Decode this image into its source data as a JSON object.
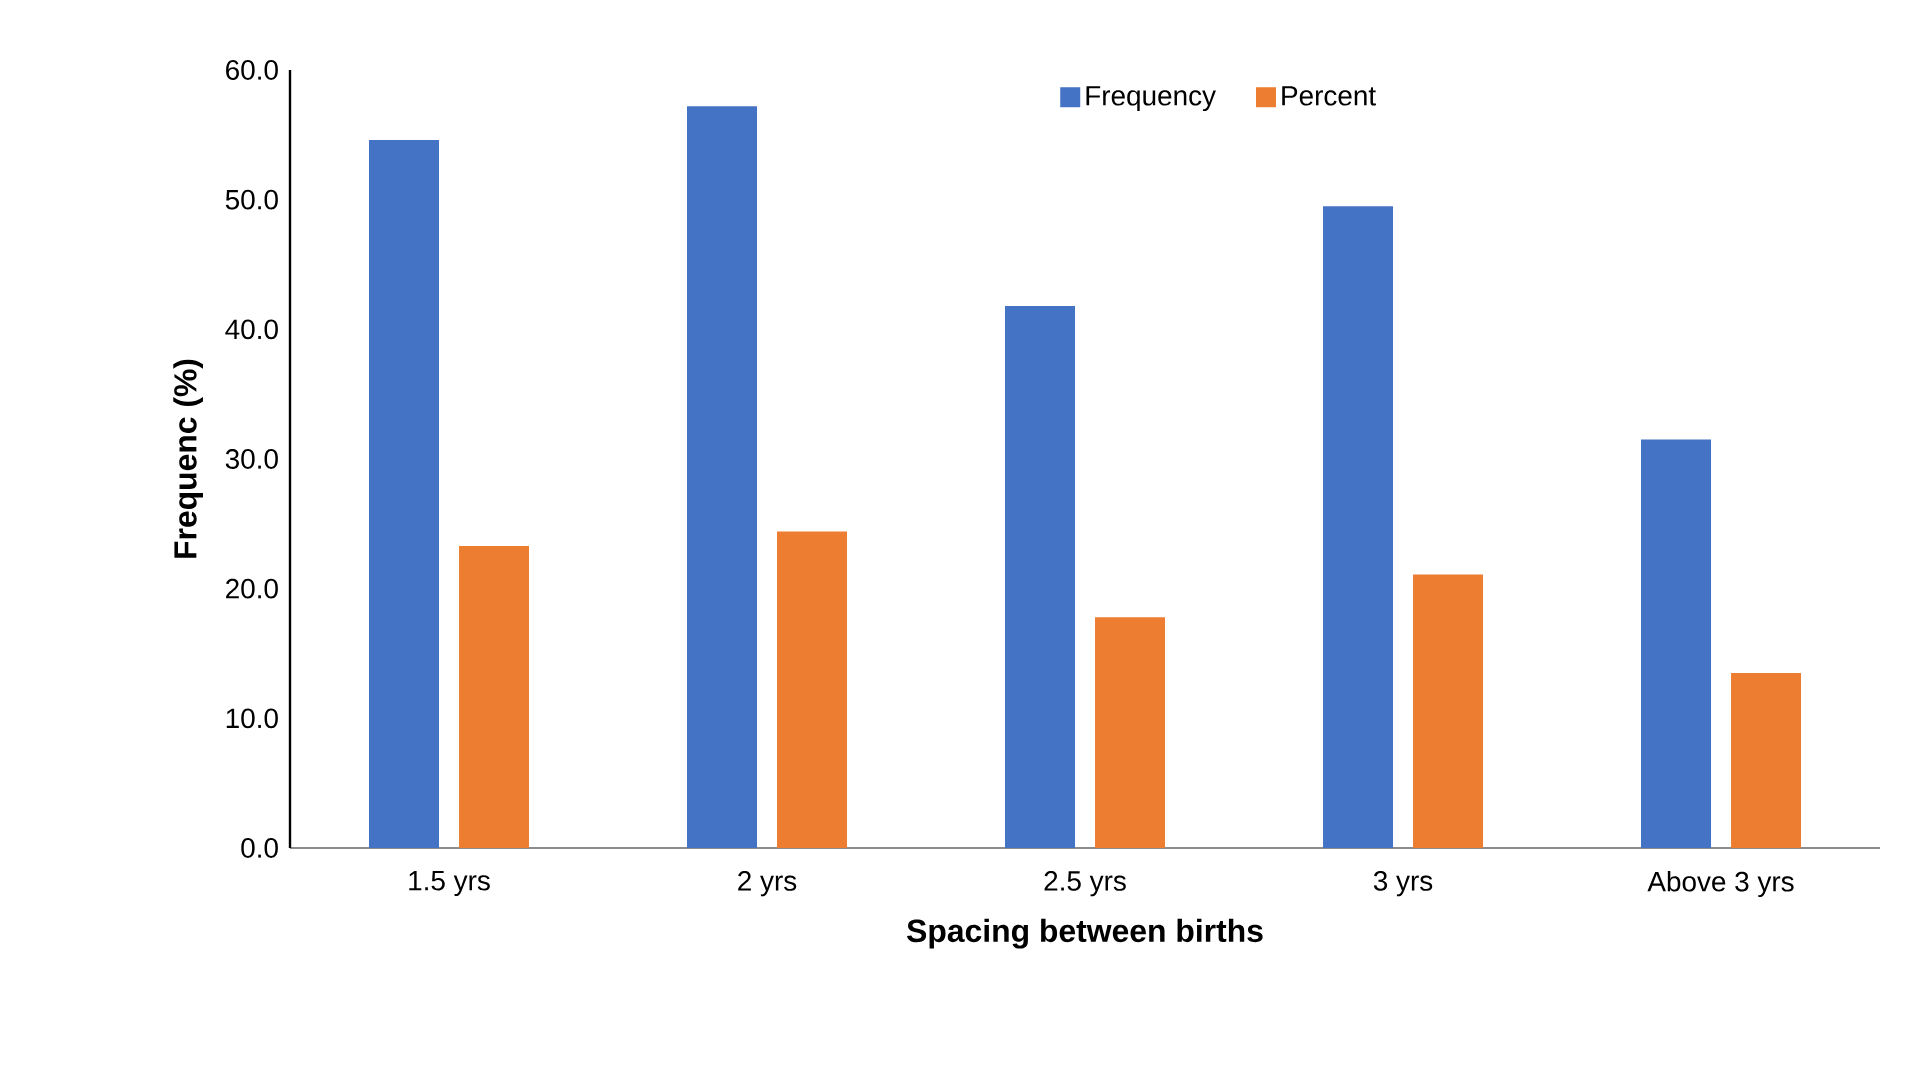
{
  "chart_data": {
    "type": "bar",
    "xlabel": "Spacing between births",
    "ylabel": "Frequenc (%)",
    "categories": [
      "1.5 yrs",
      "2 yrs",
      "2.5 yrs",
      "3 yrs",
      "Above 3 yrs"
    ],
    "series": [
      {
        "name": "Frequency",
        "color": "#4472c4",
        "values": [
          54.6,
          57.2,
          41.8,
          49.5,
          31.5
        ]
      },
      {
        "name": "Percent",
        "color": "#ed7d31",
        "values": [
          23.3,
          24.4,
          17.8,
          21.1,
          13.5
        ]
      }
    ],
    "ylim": [
      0,
      60
    ],
    "yticks": [
      {
        "value": 0,
        "label": "0.0"
      },
      {
        "value": 10,
        "label": "10.0"
      },
      {
        "value": 20,
        "label": "20.0"
      },
      {
        "value": 30,
        "label": "30.0"
      },
      {
        "value": 40,
        "label": "40.0"
      },
      {
        "value": 50,
        "label": "50.0"
      },
      {
        "value": 60,
        "label": "60.0"
      }
    ],
    "legend": "top",
    "grid": false
  }
}
